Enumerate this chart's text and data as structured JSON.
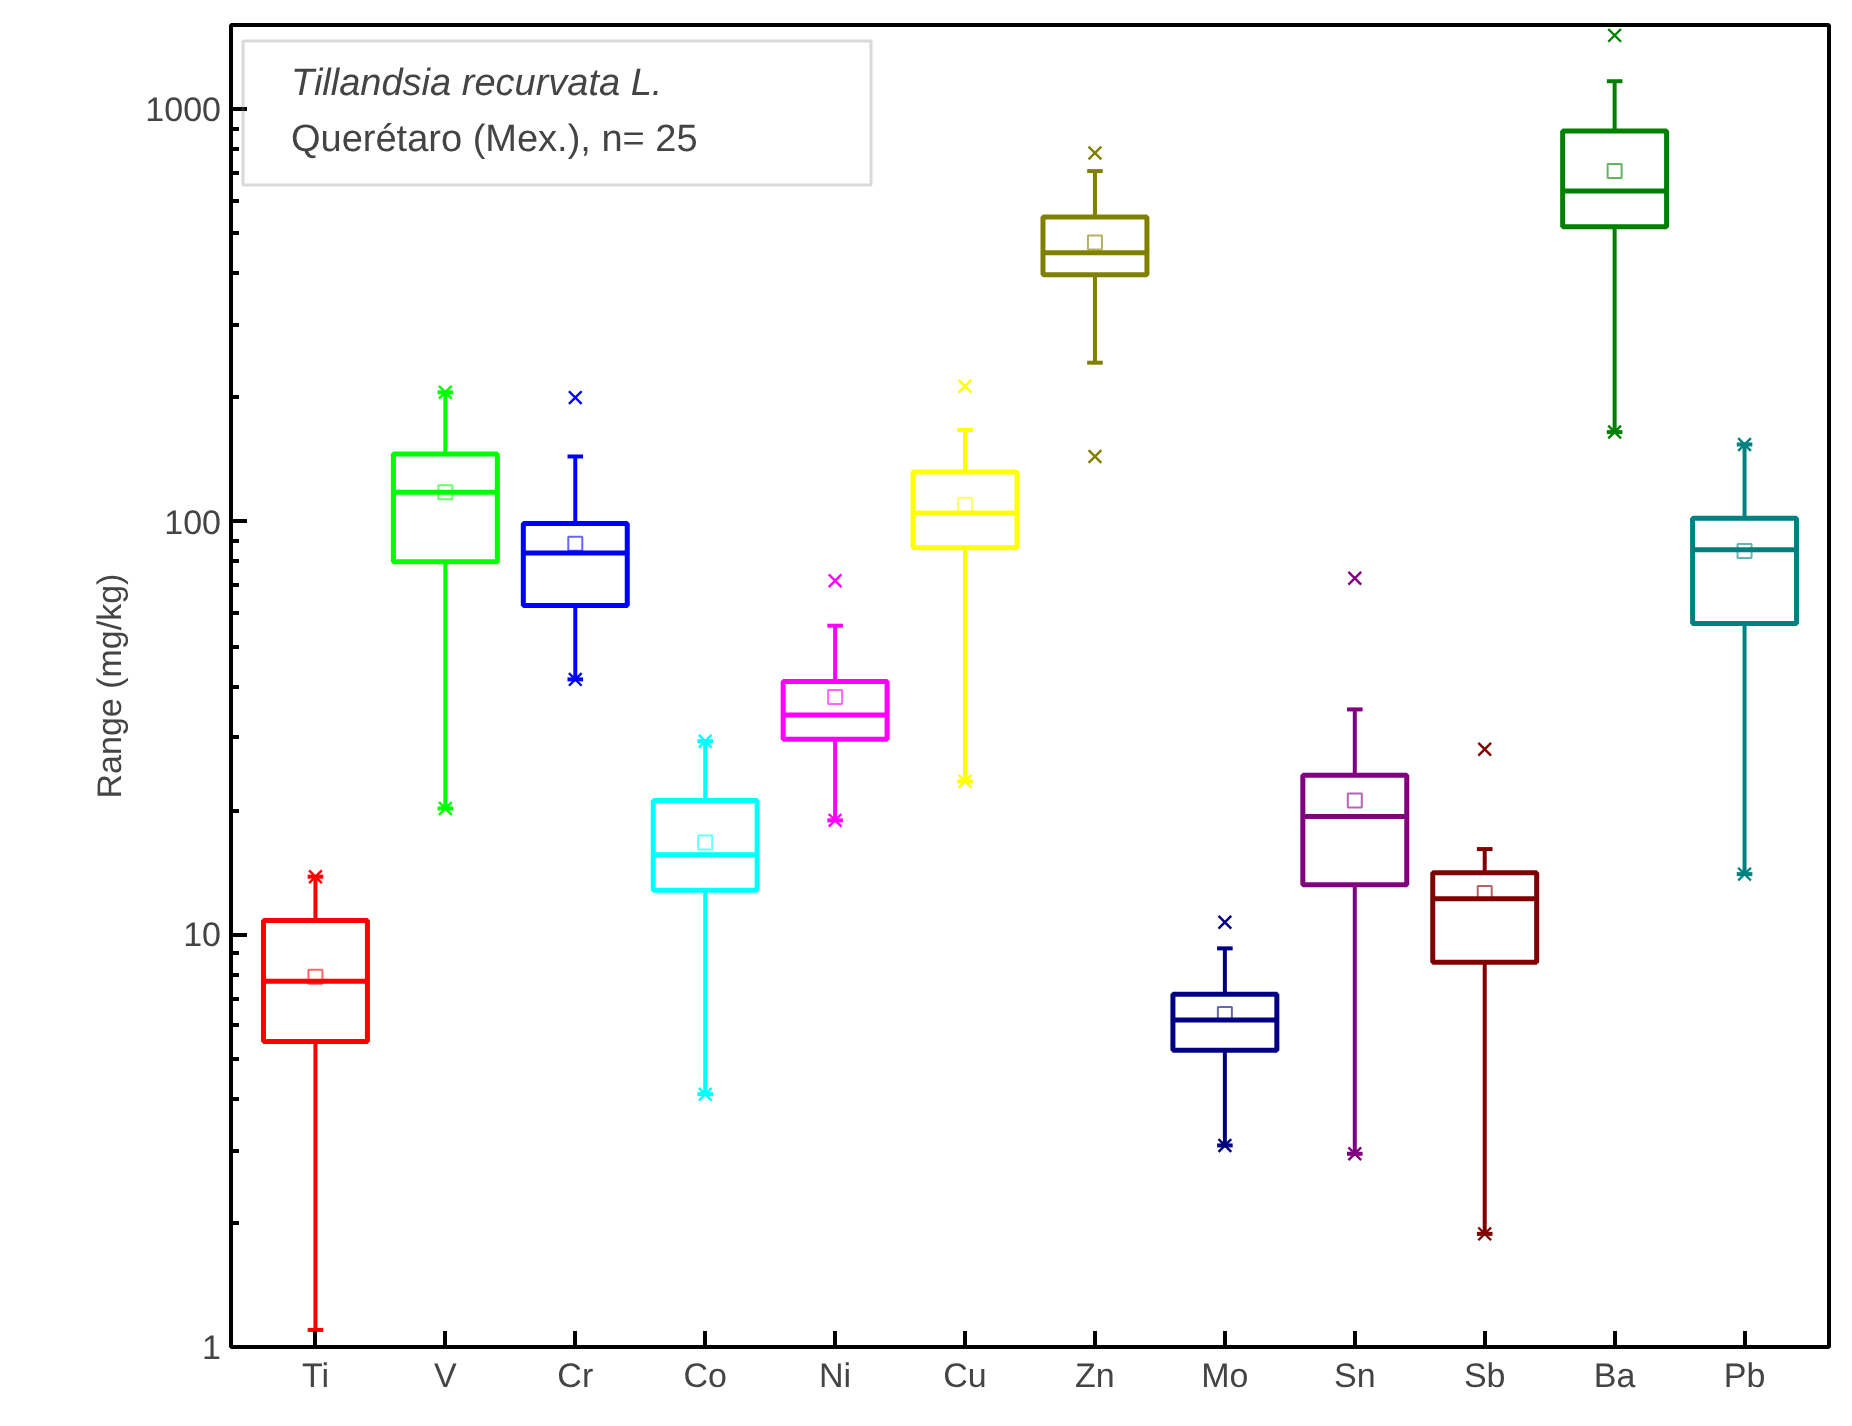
{
  "chart_data": {
    "type": "box",
    "ylabel": "Range (mg/kg)",
    "annotations": [
      "Tillandsia recurvata L.",
      "Querétaro (Mex.), n= 25"
    ],
    "categories": [
      "Ti",
      "V",
      "Cr",
      "Co",
      "Ni",
      "Cu",
      "Zn",
      "Mo",
      "Sn",
      "Sb",
      "Ba",
      "Pb"
    ],
    "colors": [
      "#ff0000",
      "#00ff00",
      "#0000ff",
      "#00ffff",
      "#ff00ff",
      "#ffff00",
      "#808000",
      "#000080",
      "#800080",
      "#800000",
      "#008000",
      "#008080"
    ],
    "boxes": [
      {
        "low": 1.1,
        "q1": 5.5,
        "median": 7.7,
        "q3": 10.8,
        "high": 13.8,
        "mean": 7.9,
        "outliers": [
          13.8
        ]
      },
      {
        "low": 20.2,
        "q1": 80,
        "median": 118,
        "q3": 146,
        "high": 206,
        "mean": 118,
        "outliers": [
          206,
          20.2
        ]
      },
      {
        "low": 41.5,
        "q1": 62.7,
        "median": 84,
        "q3": 99,
        "high": 144,
        "mean": 88.5,
        "outliers": [
          200,
          41.5
        ]
      },
      {
        "low": 4.1,
        "q1": 12.8,
        "median": 15.6,
        "q3": 21.1,
        "high": 29.4,
        "mean": 16.7,
        "outliers": [
          29.4,
          4.1
        ]
      },
      {
        "low": 18.9,
        "q1": 29.7,
        "median": 34,
        "q3": 41,
        "high": 56,
        "mean": 37.6,
        "outliers": [
          72,
          18.9
        ]
      },
      {
        "low": 23.5,
        "q1": 86.5,
        "median": 105,
        "q3": 132,
        "high": 167,
        "mean": 110,
        "outliers": [
          213,
          23.5
        ]
      },
      {
        "low": 243,
        "q1": 397,
        "median": 449,
        "q3": 548,
        "high": 708,
        "mean": 475,
        "outliers": [
          783,
          144
        ]
      },
      {
        "low": 3.08,
        "q1": 5.24,
        "median": 6.2,
        "q3": 7.16,
        "high": 9.25,
        "mean": 6.41,
        "outliers": [
          10.7,
          3.08
        ]
      },
      {
        "low": 2.94,
        "q1": 13.2,
        "median": 19.3,
        "q3": 24.3,
        "high": 35.1,
        "mean": 21.1,
        "outliers": [
          73,
          2.94
        ]
      },
      {
        "low": 1.88,
        "q1": 8.56,
        "median": 12.2,
        "q3": 14.1,
        "high": 16.1,
        "mean": 12.6,
        "outliers": [
          28.1,
          1.88
        ]
      },
      {
        "low": 165,
        "q1": 519,
        "median": 634,
        "q3": 885,
        "high": 1169,
        "mean": 708,
        "outliers": [
          1510,
          165
        ]
      },
      {
        "low": 14,
        "q1": 56.7,
        "median": 85.6,
        "q3": 102,
        "high": 154,
        "mean": 85,
        "outliers": [
          154,
          14
        ]
      }
    ],
    "ylim": [
      1,
      1600
    ],
    "yticks": [
      1,
      10,
      100,
      1000
    ],
    "log": true,
    "grid": false,
    "tick_labels": "xy"
  }
}
